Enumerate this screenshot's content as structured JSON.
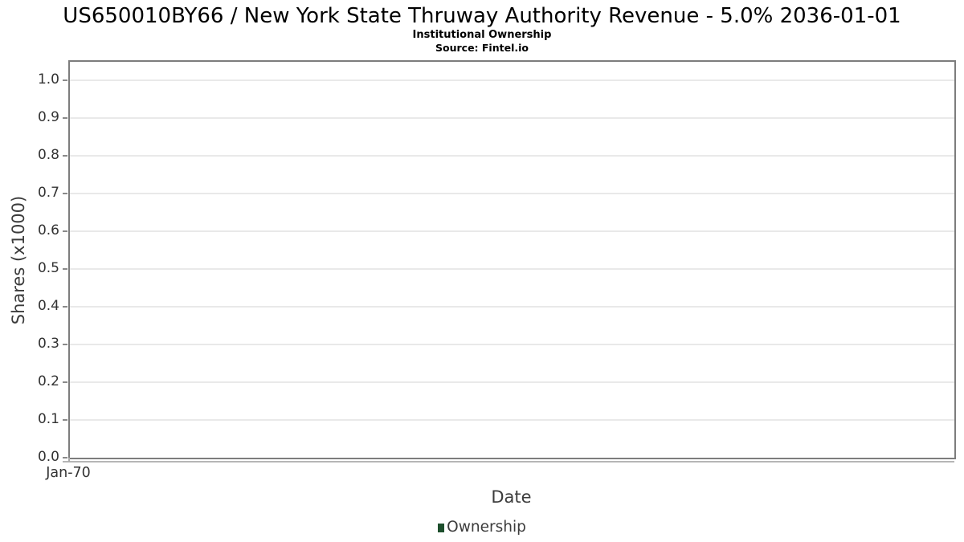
{
  "chart_data": {
    "type": "bar",
    "title": "US650010BY66 / New York State Thruway Authority Revenue - 5.0% 2036-01-01",
    "subtitle": "Institutional Ownership",
    "source": "Source: Fintel.io",
    "xlabel": "Date",
    "ylabel": "Shares (x1000)",
    "ylim": [
      0,
      1.05
    ],
    "ytick_labels": [
      "0.0",
      "0.1",
      "0.2",
      "0.3",
      "0.4",
      "0.5",
      "0.6",
      "0.7",
      "0.8",
      "0.9",
      "1.0"
    ],
    "xtick_labels": [
      "Jan-70"
    ],
    "categories": [],
    "series": [
      {
        "name": "Ownership",
        "color": "#1e4f2d",
        "values": []
      }
    ],
    "grid": "horizontal-only",
    "legend_position": "bottom-center",
    "plot_border_color": "#7d7d7d",
    "gridline_color": "#e9e9e9"
  }
}
